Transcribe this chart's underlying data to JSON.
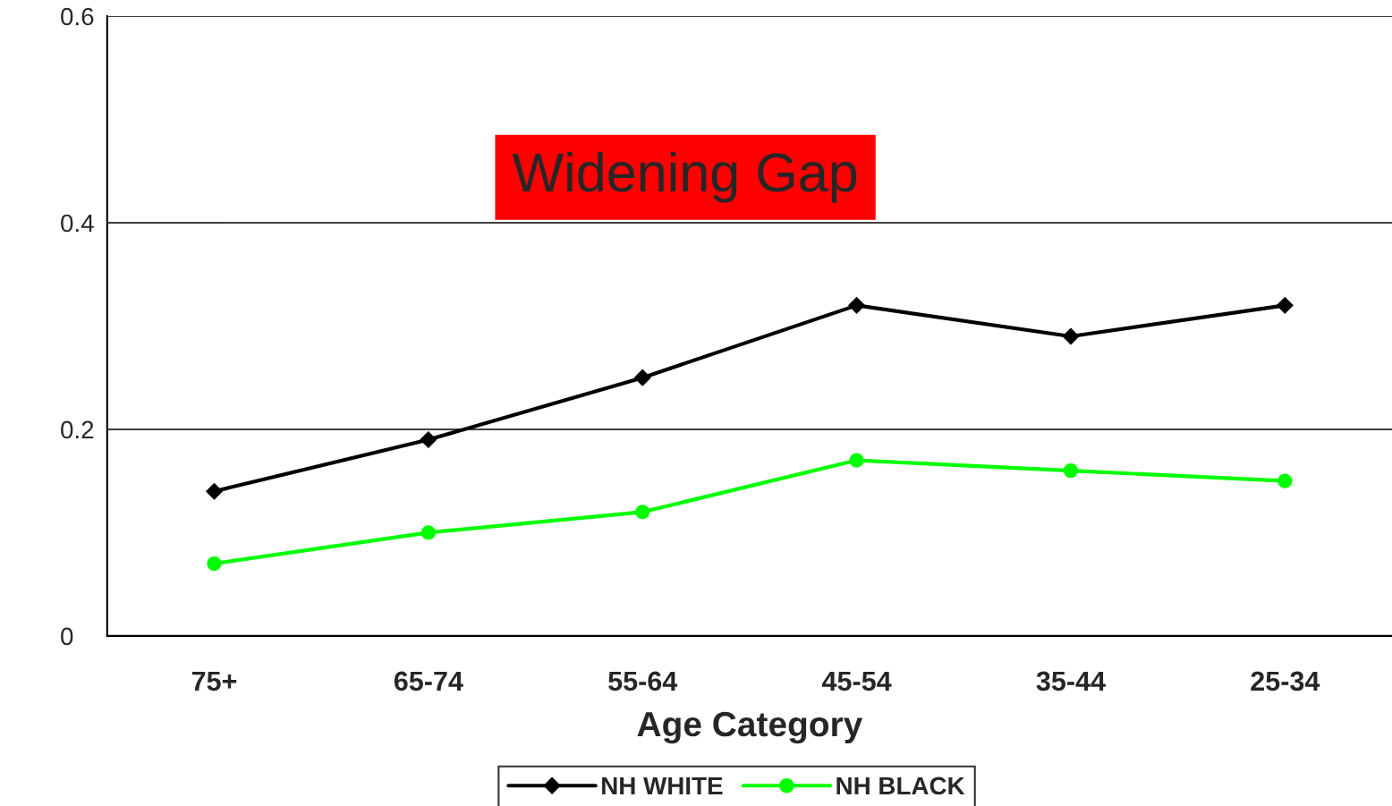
{
  "chart_data": {
    "type": "line",
    "xlabel": "Age Category",
    "categories": [
      "75+",
      "65-74",
      "55-64",
      "45-54",
      "35-44",
      "25-34"
    ],
    "series": [
      {
        "name": "NH WHITE",
        "color": "#000000",
        "marker": "diamond",
        "values": [
          0.14,
          0.19,
          0.25,
          0.32,
          0.29,
          0.32
        ]
      },
      {
        "name": "NH BLACK",
        "color": "#00ff00",
        "marker": "circle",
        "values": [
          0.07,
          0.1,
          0.12,
          0.17,
          0.16,
          0.15
        ]
      }
    ],
    "ylim": [
      0,
      0.6
    ],
    "yticks": [
      0,
      0.2,
      0.4,
      0.6
    ],
    "grid": "y",
    "legend": "bottom",
    "annotations": [
      "Widening Gap"
    ]
  }
}
